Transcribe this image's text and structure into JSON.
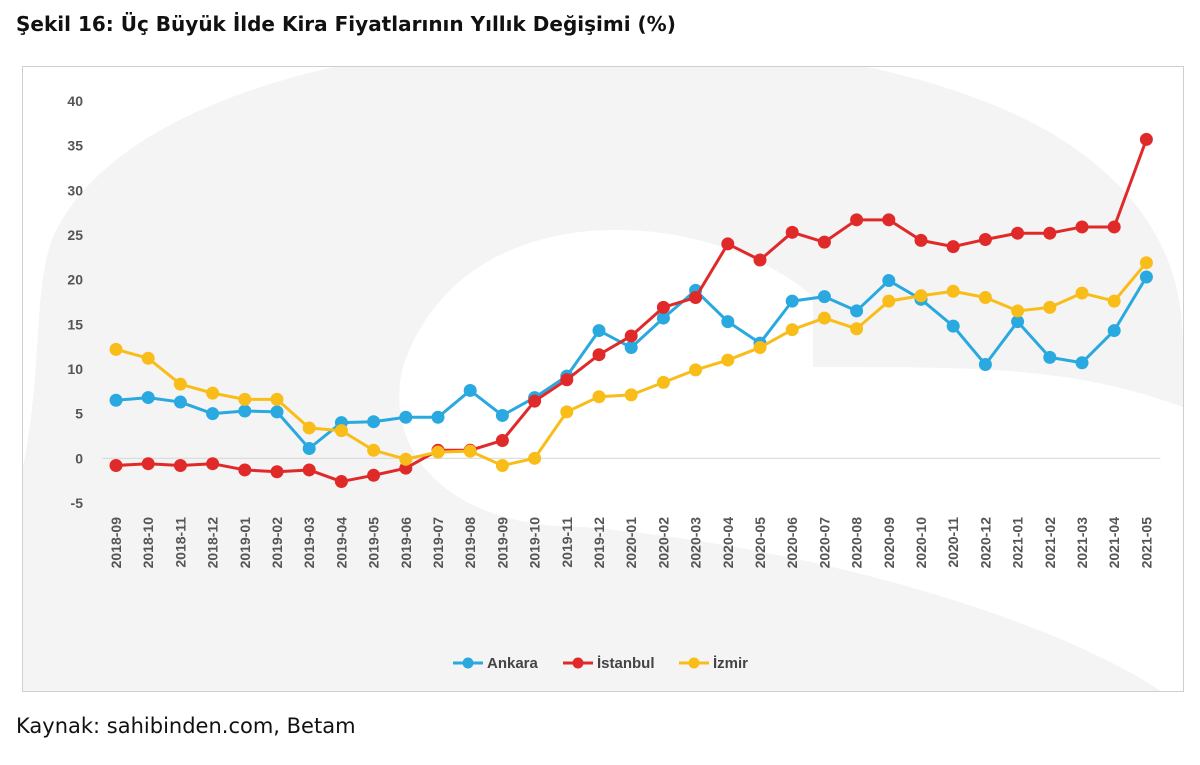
{
  "title": "Şekil 16: Üç Büyük İlde Kira Fiyatlarının Yıllık Değişimi (%)",
  "source": "Kaynak: sahibinden.com, Betam",
  "chart_data": {
    "type": "line",
    "title": "Şekil 16: Üç Büyük İlde Kira Fiyatlarının Yıllık Değişimi (%)",
    "xlabel": "",
    "ylabel": "",
    "ylim": [
      -5,
      40
    ],
    "yticks": [
      -5,
      0,
      5,
      10,
      15,
      20,
      25,
      30,
      35,
      40
    ],
    "grid": false,
    "legend_position": "bottom",
    "categories": [
      "2018-09",
      "2018-10",
      "2018-11",
      "2018-12",
      "2019-01",
      "2019-02",
      "2019-03",
      "2019-04",
      "2019-05",
      "2019-06",
      "2019-07",
      "2019-08",
      "2019-09",
      "2019-10",
      "2019-11",
      "2019-12",
      "2020-01",
      "2020-02",
      "2020-03",
      "2020-04",
      "2020-05",
      "2020-06",
      "2020-07",
      "2020-08",
      "2020-09",
      "2020-10",
      "2020-11",
      "2020-12",
      "2021-01",
      "2021-02",
      "2021-03",
      "2021-04",
      "2021-05"
    ],
    "series": [
      {
        "name": "Ankara",
        "color": "#29a9df",
        "values": [
          6.5,
          6.8,
          6.3,
          5.0,
          5.3,
          5.2,
          1.1,
          4.0,
          4.1,
          4.6,
          4.6,
          7.6,
          4.8,
          6.8,
          9.2,
          14.3,
          12.4,
          15.7,
          18.8,
          15.3,
          12.9,
          17.6,
          18.1,
          16.5,
          19.9,
          17.8,
          14.8,
          10.5,
          15.3,
          11.3,
          10.7,
          14.3,
          20.3
        ]
      },
      {
        "name": "İstanbul",
        "color": "#e02a2a",
        "values": [
          -0.8,
          -0.6,
          -0.8,
          -0.6,
          -1.3,
          -1.5,
          -1.3,
          -2.6,
          -1.9,
          -1.1,
          0.9,
          0.9,
          2.0,
          6.4,
          8.8,
          11.6,
          13.7,
          16.9,
          18.0,
          24.0,
          22.2,
          25.3,
          24.2,
          26.7,
          26.7,
          24.4,
          23.7,
          24.5,
          25.2,
          25.2,
          25.9,
          25.9,
          35.7
        ]
      },
      {
        "name": "İzmir",
        "color": "#f9bd1a",
        "values": [
          12.2,
          11.2,
          8.3,
          7.3,
          6.6,
          6.6,
          3.4,
          3.1,
          0.9,
          -0.1,
          0.7,
          0.8,
          -0.8,
          0.0,
          5.2,
          6.9,
          7.1,
          8.5,
          9.9,
          11.0,
          12.4,
          14.4,
          15.7,
          14.5,
          17.6,
          18.2,
          18.7,
          18.0,
          16.5,
          16.9,
          18.5,
          17.6,
          21.9
        ]
      }
    ]
  }
}
